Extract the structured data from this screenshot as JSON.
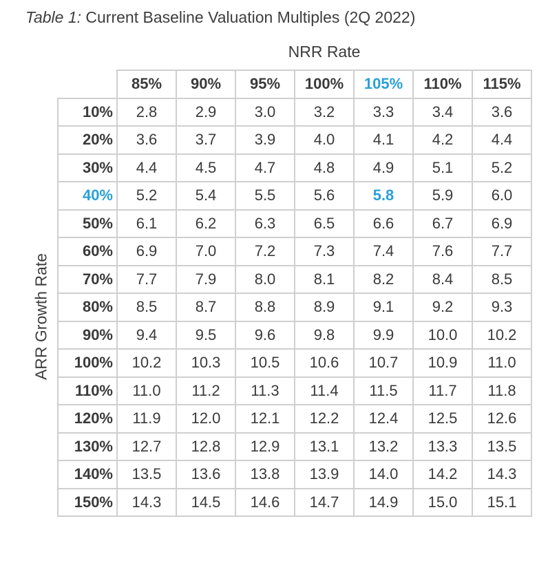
{
  "title": {
    "prefix": "Table 1:",
    "text": "Current Baseline Valuation Multiples (2Q 2022)"
  },
  "column_axis_label": "NRR Rate",
  "row_axis_label": "ARR Growth Rate",
  "colors": {
    "accent": "#2aa0d8",
    "border": "#cfcfcf",
    "text": "#3a3a3a"
  },
  "highlight": {
    "row": "40%",
    "column": "105%",
    "value": "5.8"
  },
  "chart_data": {
    "type": "table",
    "title": "Current Baseline Valuation Multiples (2Q 2022)",
    "column_label": "NRR Rate",
    "row_label": "ARR Growth Rate",
    "columns": [
      "85%",
      "90%",
      "95%",
      "100%",
      "105%",
      "110%",
      "115%"
    ],
    "rows": [
      {
        "label": "10%",
        "values": [
          "2.8",
          "2.9",
          "3.0",
          "3.2",
          "3.3",
          "3.4",
          "3.6"
        ]
      },
      {
        "label": "20%",
        "values": [
          "3.6",
          "3.7",
          "3.9",
          "4.0",
          "4.1",
          "4.2",
          "4.4"
        ]
      },
      {
        "label": "30%",
        "values": [
          "4.4",
          "4.5",
          "4.7",
          "4.8",
          "4.9",
          "5.1",
          "5.2"
        ]
      },
      {
        "label": "40%",
        "values": [
          "5.2",
          "5.4",
          "5.5",
          "5.6",
          "5.8",
          "5.9",
          "6.0"
        ]
      },
      {
        "label": "50%",
        "values": [
          "6.1",
          "6.2",
          "6.3",
          "6.5",
          "6.6",
          "6.7",
          "6.9"
        ]
      },
      {
        "label": "60%",
        "values": [
          "6.9",
          "7.0",
          "7.2",
          "7.3",
          "7.4",
          "7.6",
          "7.7"
        ]
      },
      {
        "label": "70%",
        "values": [
          "7.7",
          "7.9",
          "8.0",
          "8.1",
          "8.2",
          "8.4",
          "8.5"
        ]
      },
      {
        "label": "80%",
        "values": [
          "8.5",
          "8.7",
          "8.8",
          "8.9",
          "9.1",
          "9.2",
          "9.3"
        ]
      },
      {
        "label": "90%",
        "values": [
          "9.4",
          "9.5",
          "9.6",
          "9.8",
          "9.9",
          "10.0",
          "10.2"
        ]
      },
      {
        "label": "100%",
        "values": [
          "10.2",
          "10.3",
          "10.5",
          "10.6",
          "10.7",
          "10.9",
          "11.0"
        ]
      },
      {
        "label": "110%",
        "values": [
          "11.0",
          "11.2",
          "11.3",
          "11.4",
          "11.5",
          "11.7",
          "11.8"
        ]
      },
      {
        "label": "120%",
        "values": [
          "11.9",
          "12.0",
          "12.1",
          "12.2",
          "12.4",
          "12.5",
          "12.6"
        ]
      },
      {
        "label": "130%",
        "values": [
          "12.7",
          "12.8",
          "12.9",
          "13.1",
          "13.2",
          "13.3",
          "13.5"
        ]
      },
      {
        "label": "140%",
        "values": [
          "13.5",
          "13.6",
          "13.8",
          "13.9",
          "14.0",
          "14.2",
          "14.3"
        ]
      },
      {
        "label": "150%",
        "values": [
          "14.3",
          "14.5",
          "14.6",
          "14.7",
          "14.9",
          "15.0",
          "15.1"
        ]
      }
    ]
  }
}
